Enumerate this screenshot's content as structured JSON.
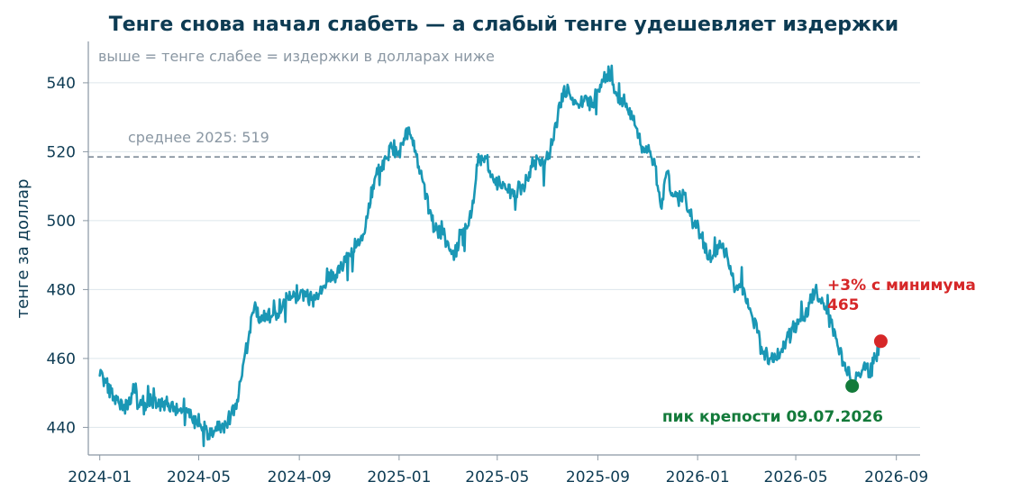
{
  "chart_data": {
    "type": "line",
    "title": "Тенге снова начал слабеть — а слабый тенге удешевляет издержки",
    "subtitle": "выше = тенге слабее = издержки в долларах ниже",
    "xlabel": "",
    "ylabel": "тенге за доллар",
    "ylim": [
      432,
      552
    ],
    "xlim": [
      "2023-12-18",
      "2026-09-30"
    ],
    "y_ticks": [
      440,
      460,
      480,
      500,
      520,
      540
    ],
    "x_ticks": [
      "2024-01",
      "2024-05",
      "2024-09",
      "2025-01",
      "2025-05",
      "2025-09",
      "2026-01",
      "2026-05",
      "2026-09"
    ],
    "grid": "horizontal",
    "reference_line": {
      "value": 518.5,
      "label": "среднее 2025: 519",
      "color": "#7f8c99"
    },
    "series": [
      {
        "color": "#1a97b5",
        "points": [
          [
            "2024-01-01",
            455
          ],
          [
            "2024-01-08",
            453
          ],
          [
            "2024-01-15",
            450
          ],
          [
            "2024-01-22",
            448
          ],
          [
            "2024-01-29",
            445
          ],
          [
            "2024-02-05",
            447
          ],
          [
            "2024-02-12",
            452
          ],
          [
            "2024-02-19",
            447
          ],
          [
            "2024-02-26",
            445
          ],
          [
            "2024-03-04",
            448
          ],
          [
            "2024-03-11",
            447
          ],
          [
            "2024-03-18",
            446
          ],
          [
            "2024-03-25",
            447
          ],
          [
            "2024-04-01",
            446
          ],
          [
            "2024-04-08",
            445
          ],
          [
            "2024-04-15",
            444
          ],
          [
            "2024-04-22",
            443
          ],
          [
            "2024-04-29",
            441
          ],
          [
            "2024-05-06",
            440
          ],
          [
            "2024-05-13",
            438
          ],
          [
            "2024-05-20",
            439
          ],
          [
            "2024-05-27",
            440
          ],
          [
            "2024-06-03",
            441
          ],
          [
            "2024-06-10",
            444
          ],
          [
            "2024-06-17",
            448
          ],
          [
            "2024-06-24",
            458
          ],
          [
            "2024-07-01",
            466
          ],
          [
            "2024-07-08",
            475
          ],
          [
            "2024-07-15",
            472
          ],
          [
            "2024-07-22",
            473
          ],
          [
            "2024-07-29",
            472
          ],
          [
            "2024-08-05",
            473
          ],
          [
            "2024-08-12",
            476
          ],
          [
            "2024-08-19",
            477
          ],
          [
            "2024-08-26",
            478
          ],
          [
            "2024-09-02",
            479
          ],
          [
            "2024-09-09",
            478
          ],
          [
            "2024-09-16",
            477
          ],
          [
            "2024-09-23",
            478
          ],
          [
            "2024-09-30",
            481
          ],
          [
            "2024-10-07",
            485
          ],
          [
            "2024-10-14",
            483
          ],
          [
            "2024-10-21",
            486
          ],
          [
            "2024-10-28",
            488
          ],
          [
            "2024-11-04",
            492
          ],
          [
            "2024-11-11",
            494
          ],
          [
            "2024-11-18",
            496
          ],
          [
            "2024-11-25",
            505
          ],
          [
            "2024-12-02",
            512
          ],
          [
            "2024-12-09",
            515
          ],
          [
            "2024-12-16",
            518
          ],
          [
            "2024-12-23",
            521
          ],
          [
            "2024-12-30",
            519
          ],
          [
            "2025-01-06",
            522
          ],
          [
            "2025-01-13",
            527
          ],
          [
            "2025-01-20",
            520
          ],
          [
            "2025-01-27",
            514
          ],
          [
            "2025-02-03",
            507
          ],
          [
            "2025-02-10",
            500
          ],
          [
            "2025-02-17",
            497
          ],
          [
            "2025-02-24",
            496
          ],
          [
            "2025-03-03",
            492
          ],
          [
            "2025-03-10",
            490
          ],
          [
            "2025-03-17",
            496
          ],
          [
            "2025-03-24",
            498
          ],
          [
            "2025-03-31",
            503
          ],
          [
            "2025-04-07",
            516
          ],
          [
            "2025-04-14",
            518
          ],
          [
            "2025-04-21",
            514
          ],
          [
            "2025-04-28",
            512
          ],
          [
            "2025-05-05",
            510
          ],
          [
            "2025-05-12",
            509
          ],
          [
            "2025-05-19",
            508
          ],
          [
            "2025-05-26",
            509
          ],
          [
            "2025-06-02",
            510
          ],
          [
            "2025-06-09",
            514
          ],
          [
            "2025-06-16",
            517
          ],
          [
            "2025-06-23",
            516
          ],
          [
            "2025-06-30",
            518
          ],
          [
            "2025-07-07",
            522
          ],
          [
            "2025-07-14",
            530
          ],
          [
            "2025-07-21",
            538
          ],
          [
            "2025-07-28",
            537
          ],
          [
            "2025-08-04",
            535
          ],
          [
            "2025-08-11",
            534
          ],
          [
            "2025-08-18",
            536
          ],
          [
            "2025-08-25",
            533
          ],
          [
            "2025-09-01",
            538
          ],
          [
            "2025-09-08",
            541
          ],
          [
            "2025-09-15",
            543
          ],
          [
            "2025-09-22",
            537
          ],
          [
            "2025-09-29",
            535
          ],
          [
            "2025-10-06",
            534
          ],
          [
            "2025-10-13",
            530
          ],
          [
            "2025-10-20",
            524
          ],
          [
            "2025-10-27",
            521
          ],
          [
            "2025-11-03",
            520
          ],
          [
            "2025-11-10",
            516
          ],
          [
            "2025-11-17",
            504
          ],
          [
            "2025-11-24",
            514
          ],
          [
            "2025-12-01",
            508
          ],
          [
            "2025-12-08",
            506
          ],
          [
            "2025-12-15",
            508
          ],
          [
            "2025-12-22",
            503
          ],
          [
            "2025-12-29",
            500
          ],
          [
            "2026-01-05",
            496
          ],
          [
            "2026-01-12",
            491
          ],
          [
            "2026-01-19",
            489
          ],
          [
            "2026-01-26",
            493
          ],
          [
            "2026-02-02",
            491
          ],
          [
            "2026-02-09",
            486
          ],
          [
            "2026-02-16",
            480
          ],
          [
            "2026-02-23",
            481
          ],
          [
            "2026-03-02",
            476
          ],
          [
            "2026-03-09",
            472
          ],
          [
            "2026-03-16",
            468
          ],
          [
            "2026-03-23",
            462
          ],
          [
            "2026-03-30",
            460
          ],
          [
            "2026-04-06",
            460
          ],
          [
            "2026-04-13",
            462
          ],
          [
            "2026-04-20",
            466
          ],
          [
            "2026-04-27",
            469
          ],
          [
            "2026-05-04",
            470
          ],
          [
            "2026-05-11",
            472
          ],
          [
            "2026-05-18",
            476
          ],
          [
            "2026-05-25",
            480
          ],
          [
            "2026-06-01",
            476
          ],
          [
            "2026-06-08",
            473
          ],
          [
            "2026-06-15",
            469
          ],
          [
            "2026-06-22",
            463
          ],
          [
            "2026-06-29",
            458
          ],
          [
            "2026-07-06",
            455
          ],
          [
            "2026-07-09",
            452
          ],
          [
            "2026-07-16",
            455
          ],
          [
            "2026-07-23",
            458
          ],
          [
            "2026-07-30",
            456
          ],
          [
            "2026-08-06",
            460
          ],
          [
            "2026-08-13",
            465
          ]
        ]
      }
    ],
    "markers": [
      {
        "date": "2026-07-09",
        "value": 452,
        "color": "#137a3a",
        "label": "пик крепости 09.07.2026"
      },
      {
        "date": "2026-08-13",
        "value": 465,
        "color": "#d62728",
        "label": "+3% с минимума\n465"
      }
    ]
  }
}
